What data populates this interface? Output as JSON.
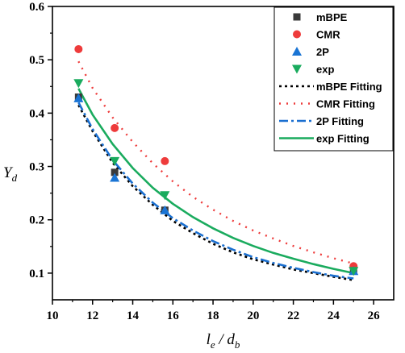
{
  "chart_data": {
    "type": "scatter",
    "x_axis": {
      "label_main": "l",
      "label_sub1": "e",
      "label_sep": " / d",
      "label_sub2": "b",
      "lim": [
        10,
        27
      ],
      "ticks": [
        10,
        12,
        14,
        16,
        18,
        20,
        22,
        24,
        26
      ]
    },
    "y_axis": {
      "label_main": "Y",
      "label_sub": "d",
      "lim": [
        0.05,
        0.6
      ],
      "ticks": [
        0.1,
        0.2,
        0.3,
        0.4,
        0.5,
        0.6
      ]
    },
    "grid": false,
    "legend_position": "top-right",
    "x": [
      11.3,
      13.1,
      15.6,
      25.0
    ],
    "series": [
      {
        "name": "mBPE",
        "marker": "square",
        "color": "#3a3a3a",
        "values": [
          0.43,
          0.289,
          0.218,
          0.104
        ]
      },
      {
        "name": "CMR",
        "marker": "circle",
        "color": "#ee3b3b",
        "values": [
          0.52,
          0.372,
          0.31,
          0.113
        ]
      },
      {
        "name": "2P",
        "marker": "triangle-up",
        "color": "#1a74d4",
        "values": [
          0.428,
          0.279,
          0.218,
          0.104
        ]
      },
      {
        "name": "exp",
        "marker": "triangle-down",
        "color": "#1aab5e",
        "values": [
          0.456,
          0.31,
          0.246,
          0.104
        ]
      }
    ],
    "fits": [
      {
        "name": "mBPE Fitting",
        "color": "#000000",
        "dash": "3,4",
        "width": 2.6,
        "points": [
          [
            11.3,
            0.415
          ],
          [
            12,
            0.366
          ],
          [
            13,
            0.307
          ],
          [
            14,
            0.263
          ],
          [
            15,
            0.228
          ],
          [
            16,
            0.198
          ],
          [
            17,
            0.175
          ],
          [
            18,
            0.155
          ],
          [
            19,
            0.139
          ],
          [
            20,
            0.126
          ],
          [
            21,
            0.116
          ],
          [
            22,
            0.107
          ],
          [
            23,
            0.1
          ],
          [
            24,
            0.093
          ],
          [
            25,
            0.087
          ]
        ]
      },
      {
        "name": "CMR Fitting",
        "color": "#ee3b3b",
        "dash": "2,7",
        "width": 2.4,
        "points": [
          [
            11.3,
            0.497
          ],
          [
            12,
            0.447
          ],
          [
            13,
            0.392
          ],
          [
            14,
            0.346
          ],
          [
            15,
            0.306
          ],
          [
            16,
            0.272
          ],
          [
            17,
            0.243
          ],
          [
            18,
            0.219
          ],
          [
            19,
            0.198
          ],
          [
            20,
            0.18
          ],
          [
            21,
            0.165
          ],
          [
            22,
            0.151
          ],
          [
            23,
            0.139
          ],
          [
            24,
            0.128
          ],
          [
            25,
            0.118
          ]
        ]
      },
      {
        "name": "2P Fitting",
        "color": "#1a6fd0",
        "dash": "11,4,3,4",
        "width": 2.6,
        "points": [
          [
            11.3,
            0.42
          ],
          [
            12,
            0.37
          ],
          [
            13,
            0.312
          ],
          [
            14,
            0.268
          ],
          [
            15,
            0.232
          ],
          [
            16,
            0.203
          ],
          [
            17,
            0.18
          ],
          [
            18,
            0.16
          ],
          [
            19,
            0.144
          ],
          [
            20,
            0.13
          ],
          [
            21,
            0.119
          ],
          [
            22,
            0.11
          ],
          [
            23,
            0.102
          ],
          [
            24,
            0.095
          ],
          [
            25,
            0.09
          ]
        ]
      },
      {
        "name": "exp Fitting",
        "color": "#1aab5e",
        "dash": "",
        "width": 2.6,
        "points": [
          [
            11.3,
            0.446
          ],
          [
            12,
            0.397
          ],
          [
            13,
            0.342
          ],
          [
            14,
            0.297
          ],
          [
            15,
            0.26
          ],
          [
            16,
            0.23
          ],
          [
            17,
            0.205
          ],
          [
            18,
            0.184
          ],
          [
            19,
            0.166
          ],
          [
            20,
            0.151
          ],
          [
            21,
            0.138
          ],
          [
            22,
            0.127
          ],
          [
            23,
            0.117
          ],
          [
            24,
            0.108
          ],
          [
            25,
            0.1
          ]
        ]
      }
    ]
  }
}
